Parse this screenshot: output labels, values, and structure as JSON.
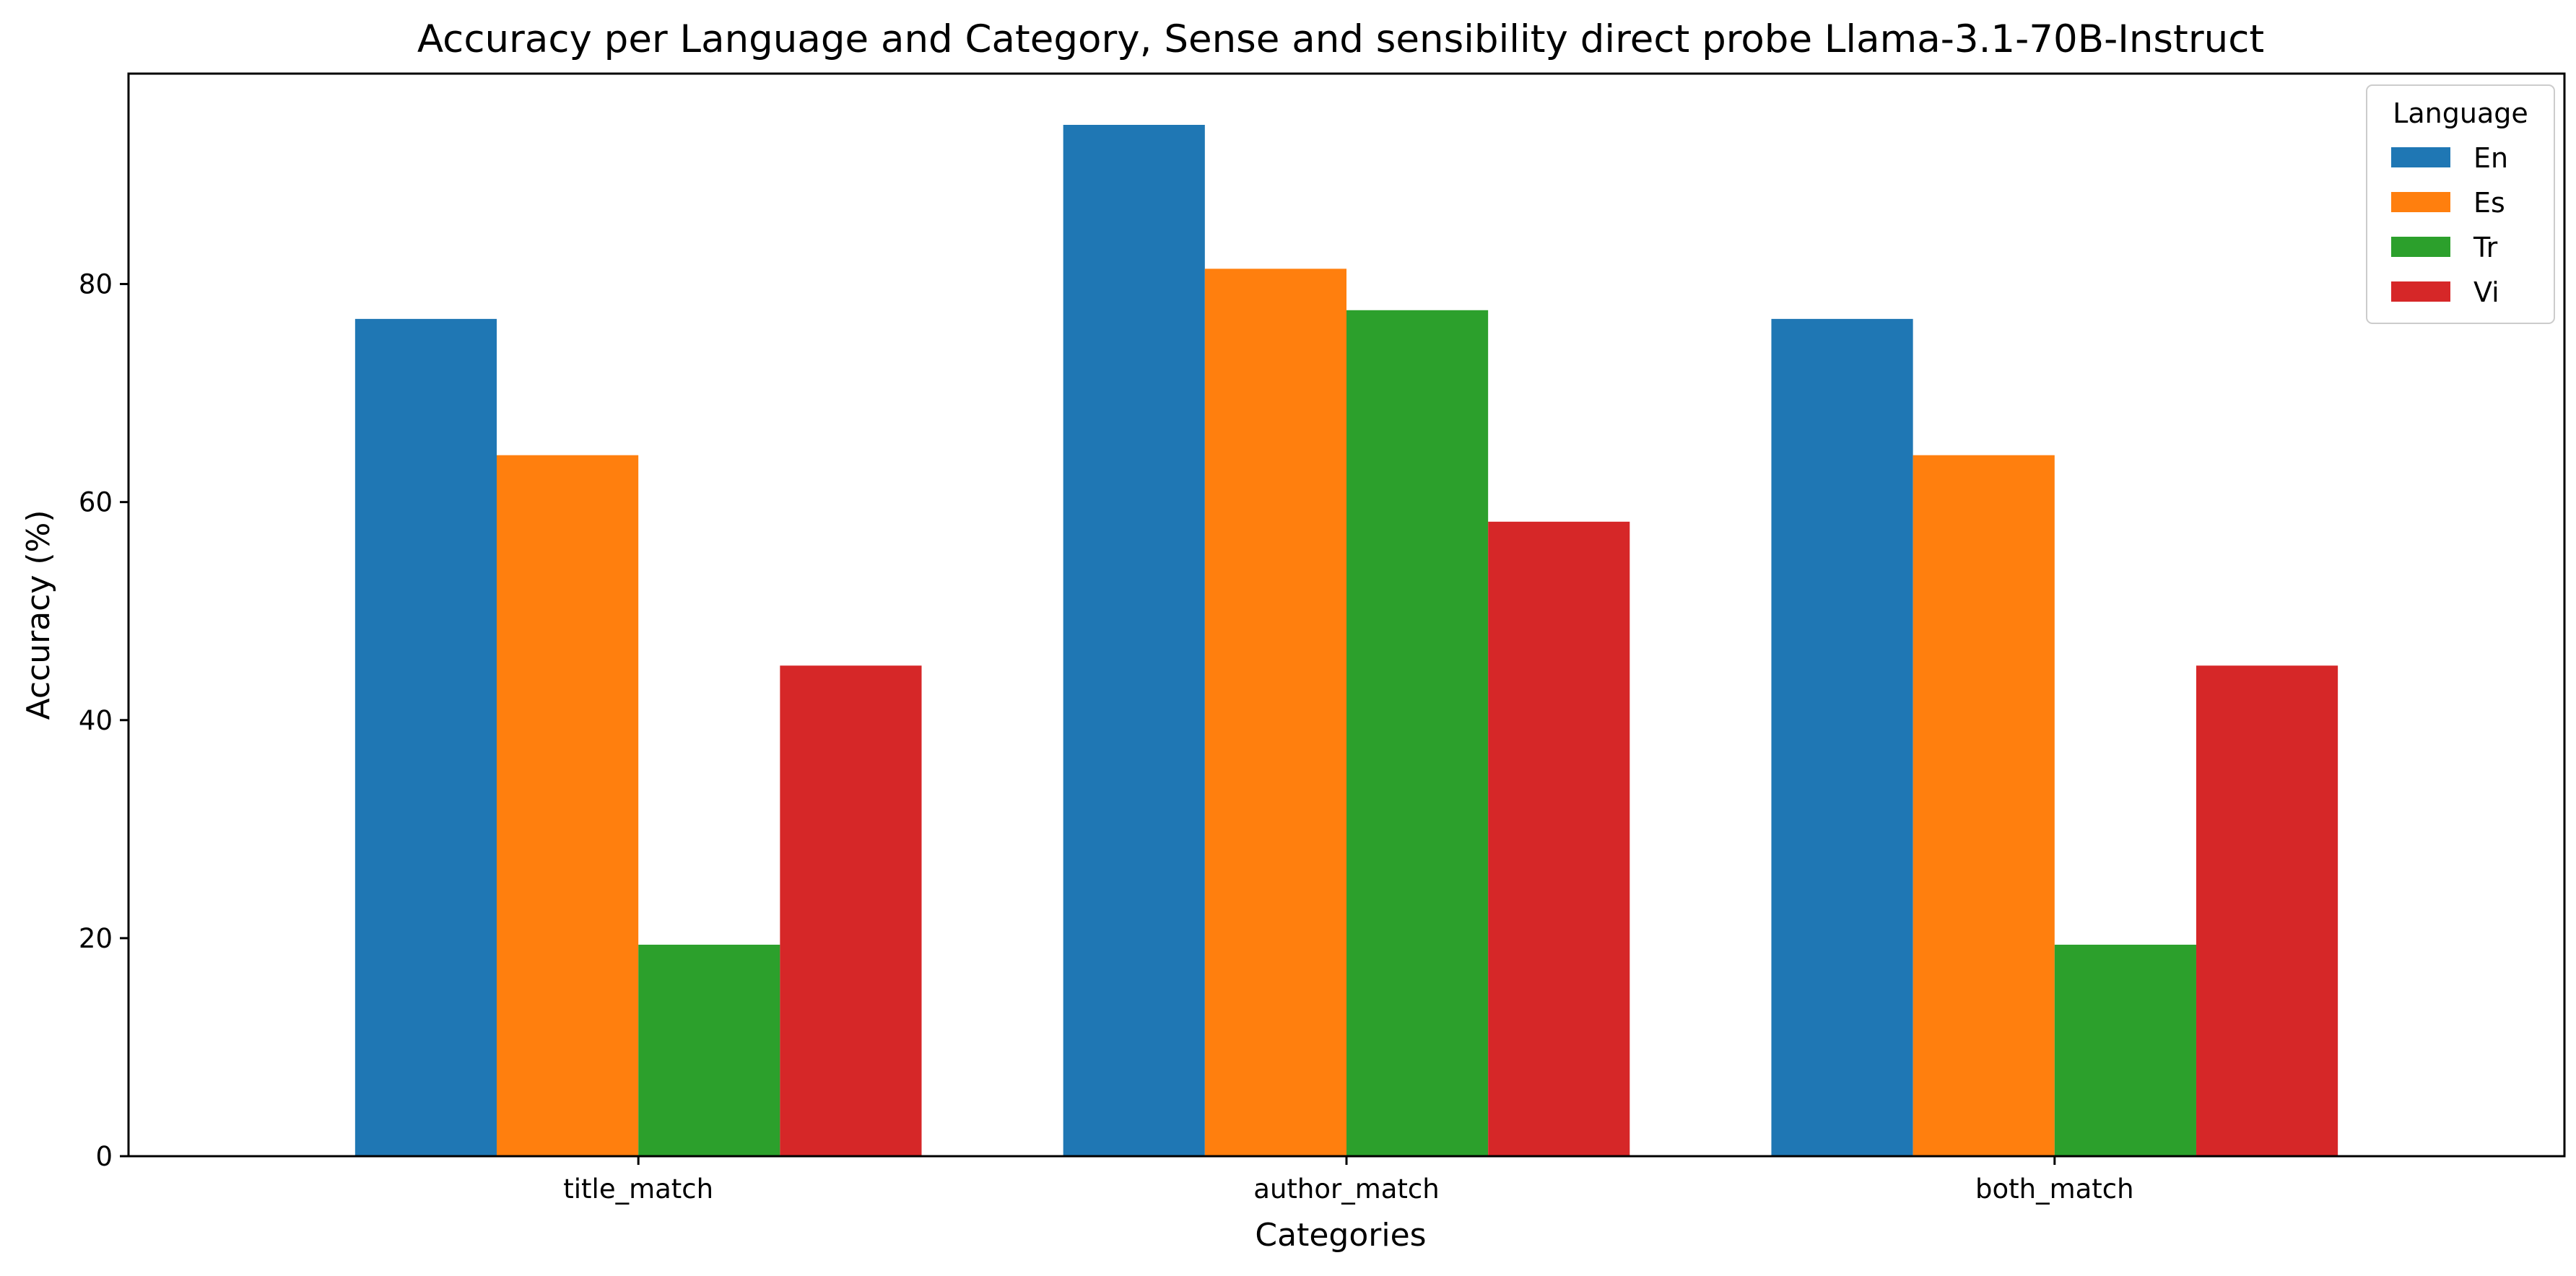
{
  "chart_data": {
    "type": "bar",
    "title": "Accuracy per Language and Category, Sense and sensibility direct probe Llama-3.1-70B-Instruct",
    "xlabel": "Categories",
    "ylabel": "Accuracy (%)",
    "categories": [
      "title_match",
      "author_match",
      "both_match"
    ],
    "series": [
      {
        "name": "En",
        "color": "#1f77b4",
        "values": [
          76.8,
          94.6,
          76.8
        ]
      },
      {
        "name": "Es",
        "color": "#ff7f0e",
        "values": [
          64.3,
          81.4,
          64.3
        ]
      },
      {
        "name": "Tr",
        "color": "#2ca02c",
        "values": [
          19.4,
          77.6,
          19.4
        ]
      },
      {
        "name": "Vi",
        "color": "#d62728",
        "values": [
          45.0,
          58.2,
          45.0
        ]
      }
    ],
    "ylim": [
      0,
      99.3
    ],
    "yticks": [
      0,
      20,
      40,
      60,
      80
    ],
    "legend_title": "Language",
    "legend_position": "top-right",
    "grid": false
  }
}
